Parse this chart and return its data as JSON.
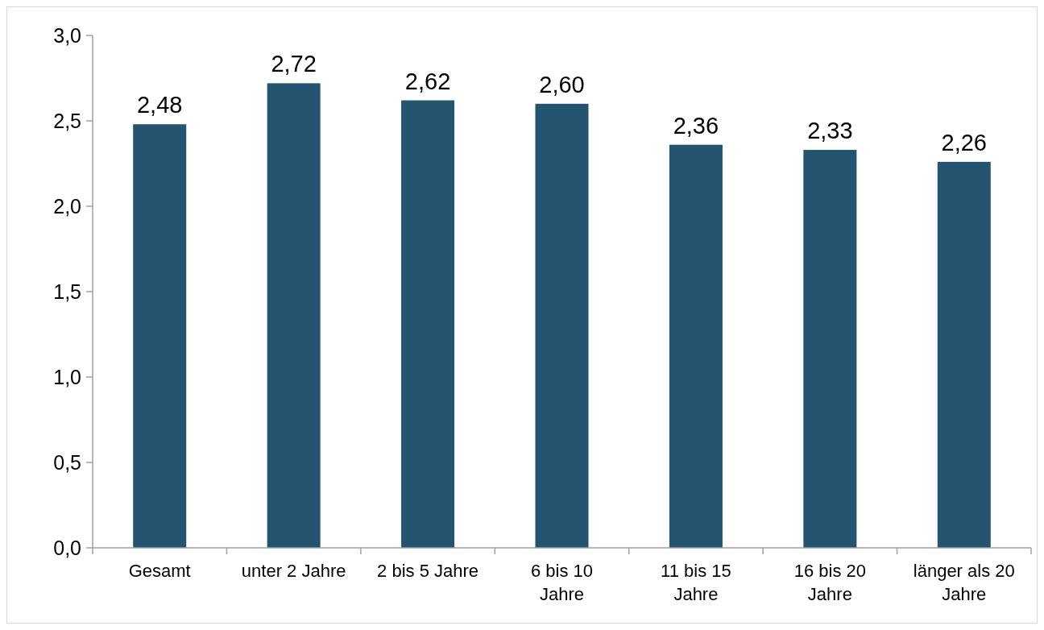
{
  "chart_data": {
    "type": "bar",
    "categories": [
      "Gesamt",
      "unter 2 Jahre",
      "2 bis 5 Jahre",
      "6 bis 10 Jahre",
      "11 bis 15 Jahre",
      "16 bis 20 Jahre",
      "länger als 20 Jahre"
    ],
    "values": [
      2.48,
      2.72,
      2.62,
      2.6,
      2.36,
      2.33,
      2.26
    ],
    "value_labels": [
      "2,48",
      "2,72",
      "2,62",
      "2,60",
      "2,36",
      "2,33",
      "2,26"
    ],
    "color": "#24546f",
    "ylim": [
      0,
      3
    ],
    "yticks": [
      {
        "value": 0,
        "label": "0,0"
      },
      {
        "value": 0.5,
        "label": "0,5"
      },
      {
        "value": 1,
        "label": "1,0"
      },
      {
        "value": 1.5,
        "label": "1,5"
      },
      {
        "value": 2,
        "label": "2,0"
      },
      {
        "value": 2.5,
        "label": "2,5"
      },
      {
        "value": 3,
        "label": "3,0"
      }
    ],
    "grid": false
  }
}
